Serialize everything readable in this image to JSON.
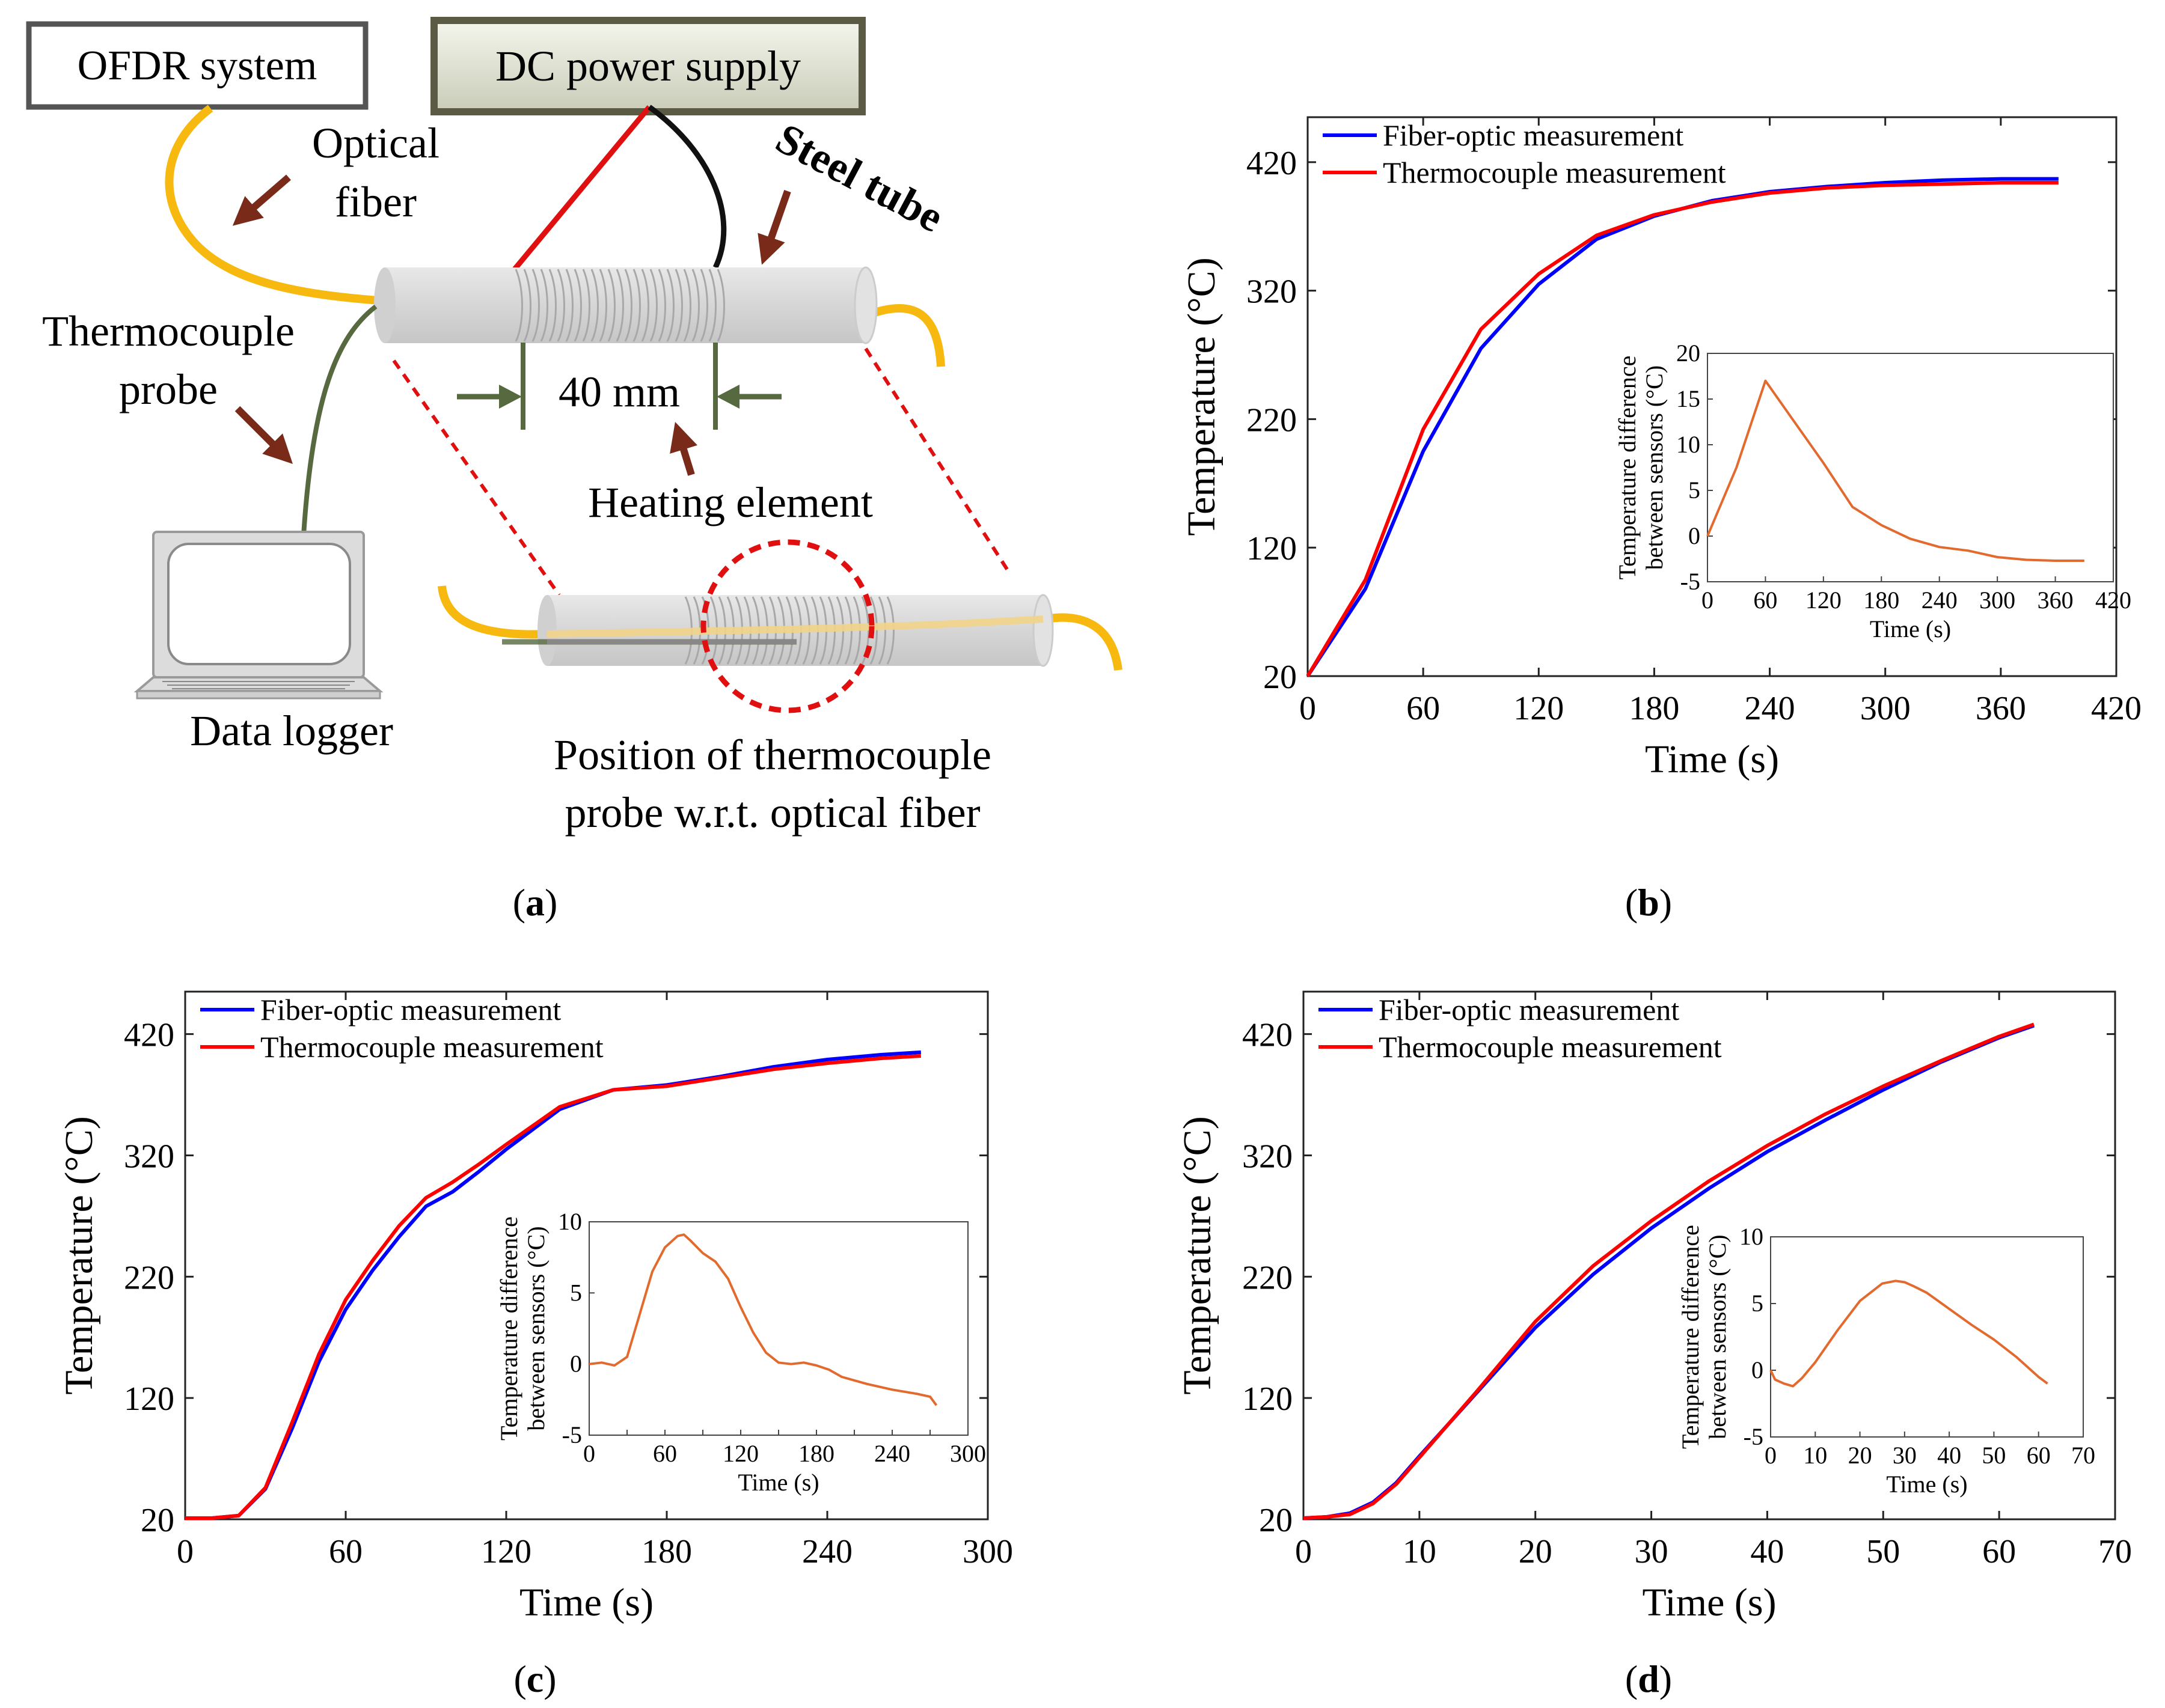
{
  "panel_a": {
    "boxes": {
      "ofdr": "OFDR system",
      "dc": "DC power supply"
    },
    "labels": {
      "optical_fiber_1": "Optical",
      "optical_fiber_2": "fiber",
      "steel_tube": "Steel tube",
      "thermocouple_1": "Thermocouple",
      "thermocouple_2": "probe",
      "dimension": "40 mm",
      "heating_element": "Heating element",
      "data_logger": "Data logger",
      "position_1": "Position of thermocouple",
      "position_2": "probe w.r.t. optical fiber"
    },
    "caption": "a"
  },
  "chart_data": [
    {
      "panel": "b",
      "type": "line",
      "xlabel": "Time (s)",
      "ylabel": "Temperature (°C)",
      "xlim": [
        0,
        420
      ],
      "ylim": [
        20,
        455
      ],
      "xticks": [
        0,
        60,
        120,
        180,
        240,
        300,
        360,
        420
      ],
      "yticks": [
        20,
        120,
        220,
        320,
        420
      ],
      "series": [
        {
          "name": "Fiber-optic measurement",
          "color": "#0000ff",
          "x": [
            0,
            30,
            60,
            90,
            120,
            150,
            180,
            210,
            240,
            270,
            300,
            330,
            360,
            390
          ],
          "y": [
            20,
            88,
            195,
            275,
            325,
            360,
            378,
            390,
            397,
            401,
            404,
            406,
            407,
            407
          ]
        },
        {
          "name": "Thermocouple measurement",
          "color": "#ff0000",
          "x": [
            0,
            30,
            60,
            90,
            120,
            150,
            180,
            210,
            240,
            270,
            300,
            330,
            360,
            390
          ],
          "y": [
            20,
            95,
            212,
            290,
            333,
            363,
            379,
            389,
            396,
            400,
            402,
            403,
            404,
            404
          ]
        }
      ],
      "inset": {
        "xlabel": "Time (s)",
        "ylabel_1": "Temperature difference",
        "ylabel_2": "between sensors (°C)",
        "xlim": [
          0,
          420
        ],
        "ylim": [
          -5,
          20
        ],
        "xticks": [
          0,
          60,
          120,
          180,
          240,
          300,
          360,
          420
        ],
        "yticks": [
          -5,
          0,
          5,
          10,
          15,
          20
        ],
        "color": "#e36a2e",
        "x": [
          0,
          30,
          60,
          90,
          120,
          150,
          180,
          210,
          240,
          270,
          300,
          330,
          360,
          390
        ],
        "y": [
          0,
          7.5,
          17,
          12.5,
          8,
          3.2,
          1.2,
          -0.3,
          -1.2,
          -1.6,
          -2.3,
          -2.6,
          -2.7,
          -2.7
        ]
      },
      "caption": "b"
    },
    {
      "panel": "c",
      "type": "line",
      "xlabel": "Time (s)",
      "ylabel": "Temperature (°C)",
      "xlim": [
        0,
        300
      ],
      "ylim": [
        20,
        455
      ],
      "xticks": [
        0,
        60,
        120,
        180,
        240,
        300
      ],
      "yticks": [
        20,
        120,
        220,
        320,
        420
      ],
      "series": [
        {
          "name": "Fiber-optic measurement",
          "color": "#0000ff",
          "x": [
            0,
            10,
            20,
            30,
            40,
            50,
            60,
            70,
            80,
            90,
            100,
            110,
            120,
            140,
            160,
            180,
            200,
            220,
            240,
            260,
            275
          ],
          "y": [
            21,
            21,
            23,
            45,
            95,
            150,
            193,
            225,
            253,
            278,
            290,
            307,
            325,
            358,
            374,
            378,
            385,
            393,
            399,
            403,
            405
          ]
        },
        {
          "name": "Thermocouple measurement",
          "color": "#ff0000",
          "x": [
            0,
            10,
            20,
            30,
            40,
            50,
            60,
            70,
            80,
            90,
            100,
            110,
            120,
            140,
            160,
            180,
            200,
            220,
            240,
            260,
            275
          ],
          "y": [
            21,
            21,
            23,
            46,
            100,
            156,
            201,
            233,
            262,
            285,
            298,
            313,
            329,
            360,
            374,
            377,
            384,
            391,
            396,
            400,
            402
          ]
        }
      ],
      "inset": {
        "xlabel": "Time (s)",
        "ylabel_1": "Temperature difference",
        "ylabel_2": "between sensors (°C)",
        "xlim": [
          0,
          300
        ],
        "ylim": [
          -5,
          10
        ],
        "xticks": [
          0,
          30,
          60,
          90,
          120,
          150,
          180,
          210,
          240,
          270,
          300
        ],
        "xticklabels": [
          "0",
          "",
          "60",
          "",
          "120",
          "",
          "180",
          "",
          "240",
          "",
          "300"
        ],
        "yticks": [
          -5,
          0,
          5,
          10
        ],
        "color": "#e36a2e",
        "x": [
          0,
          10,
          20,
          30,
          40,
          50,
          60,
          70,
          75,
          80,
          90,
          100,
          110,
          120,
          130,
          140,
          150,
          160,
          170,
          180,
          190,
          200,
          220,
          240,
          260,
          270,
          275
        ],
        "y": [
          0,
          0.1,
          -0.1,
          0.5,
          3.5,
          6.5,
          8.2,
          9,
          9.1,
          8.7,
          7.8,
          7.2,
          6,
          4,
          2.2,
          0.8,
          0.1,
          0,
          0.1,
          -0.1,
          -0.4,
          -0.9,
          -1.4,
          -1.8,
          -2.1,
          -2.3,
          -2.9
        ]
      },
      "caption": "c"
    },
    {
      "panel": "d",
      "type": "line",
      "xlabel": "Time (s)",
      "ylabel": "Temperature (°C)",
      "xlim": [
        0,
        70
      ],
      "ylim": [
        20,
        455
      ],
      "xticks": [
        0,
        10,
        20,
        30,
        40,
        50,
        60,
        70
      ],
      "yticks": [
        20,
        120,
        220,
        320,
        420
      ],
      "series": [
        {
          "name": "Fiber-optic measurement",
          "color": "#0000ff",
          "x": [
            0,
            2,
            4,
            6,
            8,
            10,
            15,
            20,
            25,
            30,
            35,
            40,
            45,
            50,
            55,
            60,
            63
          ],
          "y": [
            21,
            22,
            25,
            34,
            50,
            72,
            125,
            178,
            222,
            260,
            293,
            323,
            349,
            374,
            397,
            417,
            427
          ]
        },
        {
          "name": "Thermocouple measurement",
          "color": "#ff0000",
          "x": [
            0,
            2,
            4,
            6,
            8,
            10,
            15,
            20,
            25,
            30,
            35,
            40,
            45,
            50,
            55,
            60,
            63
          ],
          "y": [
            21,
            22,
            24,
            33,
            49,
            71,
            126,
            183,
            229,
            266,
            299,
            328,
            354,
            377,
            398,
            418,
            428
          ]
        }
      ],
      "inset": {
        "xlabel": "Time (s)",
        "ylabel_1": "Temperature difference",
        "ylabel_2": "between sensors (°C)",
        "xlim": [
          0,
          70
        ],
        "ylim": [
          -5,
          10
        ],
        "xticks": [
          0,
          10,
          20,
          30,
          40,
          50,
          60,
          70
        ],
        "yticks": [
          -5,
          0,
          5,
          10
        ],
        "color": "#e36a2e",
        "x": [
          0,
          1,
          3,
          5,
          7,
          10,
          15,
          20,
          25,
          28,
          30,
          32,
          35,
          40,
          45,
          50,
          55,
          60,
          62
        ],
        "y": [
          0,
          -0.7,
          -1,
          -1.2,
          -0.6,
          0.6,
          3,
          5.2,
          6.5,
          6.7,
          6.6,
          6.3,
          5.8,
          4.6,
          3.4,
          2.3,
          1,
          -0.5,
          -1
        ]
      },
      "caption": "d"
    }
  ]
}
